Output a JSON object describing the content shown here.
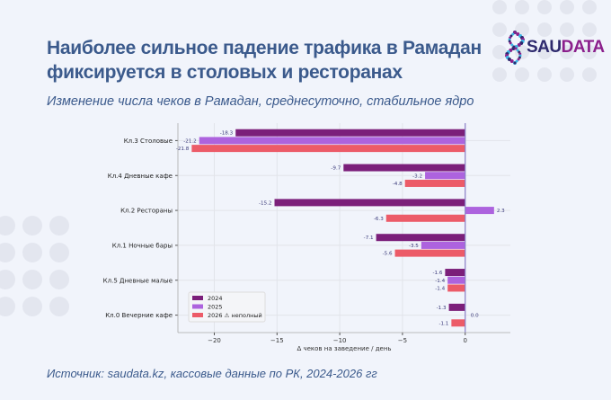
{
  "header": {
    "title_line1": "Наиболее сильное падение трафика в Рамадан",
    "title_line2": "фиксируется в столовых и ресторанах",
    "subtitle": "Изменение числа чеков в Рамадан, среднесуточно, стабильное ядро"
  },
  "logo": {
    "part1": "SAU",
    "part2": "DATA",
    "color1": "#2e2a6e",
    "color2": "#8b1f8c"
  },
  "source": "Источник: saudata.kz, кассовые данные по РК, 2024-2026 гг",
  "chart_data": {
    "type": "bar",
    "orientation": "horizontal",
    "categories": [
      "Кл.3 Столовые",
      "Кл.4 Дневные кафе",
      "Кл.2 Рестораны",
      "Кл.1 Ночные бары",
      "Кл.5 Дневные малые",
      "Кл.0 Вечерние кафе"
    ],
    "series": [
      {
        "name": "2024",
        "color": "#7b1f7a",
        "values": [
          -18.3,
          -9.7,
          -15.2,
          -7.1,
          -1.6,
          -1.3
        ]
      },
      {
        "name": "2025",
        "color": "#ad63de",
        "values": [
          -21.2,
          -3.2,
          2.3,
          -3.5,
          -1.4,
          0.0
        ]
      },
      {
        "name": "2026 ⚠ неполный",
        "color": "#ec5b68",
        "values": [
          -21.8,
          -4.8,
          -6.3,
          -5.6,
          -1.4,
          -1.1
        ]
      }
    ],
    "xlabel": "Δ чеков на заведение / день",
    "ylabel": "",
    "xlim": [
      -22.9,
      3.6
    ],
    "xticks": [
      -20,
      -15,
      -10,
      -5,
      0
    ],
    "grid": true,
    "legend": "lower-left"
  }
}
